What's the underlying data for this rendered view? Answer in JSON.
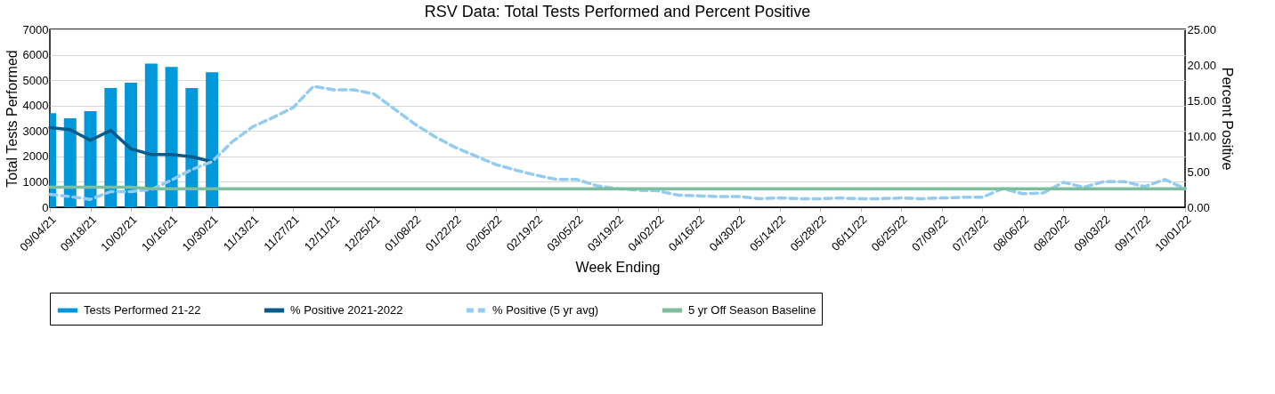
{
  "chart_data": {
    "type": "bar",
    "title": "RSV Data: Total Tests Performed and Percent Positive",
    "xlabel": "Week Ending",
    "ylabel": "Total Tests Performed",
    "y2label": "Percent Positive",
    "categories": [
      "09/04/21",
      null,
      "09/18/21",
      null,
      "10/02/21",
      null,
      "10/16/21",
      null,
      "10/30/21",
      null,
      "11/13/21",
      null,
      "11/27/21",
      null,
      "12/11/21",
      null,
      "12/25/21",
      null,
      "01/08/22",
      null,
      "01/22/22",
      null,
      "02/05/22",
      null,
      "02/19/22",
      null,
      "03/05/22",
      null,
      "03/19/22",
      null,
      "04/02/22",
      null,
      "04/16/22",
      null,
      "04/30/22",
      null,
      "05/14/22",
      null,
      "05/28/22",
      null,
      "06/11/22",
      null,
      "06/25/22",
      null,
      "07/09/22",
      null,
      "07/23/22",
      null,
      "08/06/22",
      null,
      "08/20/22",
      null,
      "09/03/22",
      null,
      "09/17/22",
      null,
      "10/01/22"
    ],
    "series": [
      {
        "name": "Tests Performed 21-22",
        "color": "#0098da",
        "values": [
          3700,
          3500,
          3780,
          4690,
          4900,
          5650,
          5520,
          4690,
          5310,
          null,
          null,
          null,
          null,
          null,
          null,
          null,
          null,
          null,
          null,
          null,
          null,
          null,
          null,
          null,
          null,
          null,
          null,
          null,
          null,
          null,
          null,
          null,
          null,
          null,
          null,
          null,
          null,
          null,
          null,
          null,
          null,
          null,
          null,
          null,
          null,
          null,
          null,
          null,
          null,
          null,
          null,
          null,
          null,
          null,
          null,
          null,
          null
        ]
      },
      {
        "name": "% Positive 2021-2022",
        "type": "line",
        "axis": "y2",
        "line_style": "solid",
        "color": "#0b5a8c",
        "values": [
          11.2,
          10.9,
          9.4,
          10.8,
          8.2,
          7.4,
          7.4,
          7.1,
          6.4,
          null,
          null,
          null,
          null,
          null,
          null,
          null,
          null,
          null,
          null,
          null,
          null,
          null,
          null,
          null,
          null,
          null,
          null,
          null,
          null,
          null,
          null,
          null,
          null,
          null,
          null,
          null,
          null,
          null,
          null,
          null,
          null,
          null,
          null,
          null,
          null,
          null,
          null,
          null,
          null,
          null,
          null,
          null,
          null,
          null,
          null,
          null,
          null
        ]
      },
      {
        "name": "% Positive (5 yr avg)",
        "type": "line",
        "axis": "y2",
        "line_style": "dashed",
        "color": "#93cbf1",
        "values": [
          1.8,
          1.5,
          1.1,
          2.2,
          2.2,
          2.5,
          3.8,
          5.3,
          6.4,
          9.2,
          11.3,
          12.6,
          14.0,
          17.0,
          16.5,
          16.5,
          15.9,
          13.8,
          11.7,
          9.9,
          8.4,
          7.2,
          6.0,
          5.2,
          4.5,
          3.9,
          3.9,
          3.0,
          2.6,
          2.4,
          2.3,
          1.7,
          1.6,
          1.5,
          1.5,
          1.2,
          1.3,
          1.2,
          1.2,
          1.3,
          1.2,
          1.2,
          1.3,
          1.2,
          1.3,
          1.4,
          1.4,
          2.6,
          1.9,
          2.0,
          3.5,
          2.8,
          3.6,
          3.6,
          2.9,
          3.9,
          2.6
        ]
      },
      {
        "name": "5 yr Off Season Baseline",
        "type": "line",
        "axis": "y2",
        "line_style": "solid",
        "color": "#7dbe9c",
        "values": [
          2.8,
          2.8,
          2.8,
          2.8,
          2.8,
          2.6,
          2.6,
          2.6,
          2.6,
          2.6,
          2.6,
          2.6,
          2.6,
          2.6,
          2.6,
          2.6,
          2.6,
          2.6,
          2.6,
          2.6,
          2.6,
          2.6,
          2.6,
          2.6,
          2.6,
          2.6,
          2.6,
          2.6,
          2.6,
          2.6,
          2.6,
          2.6,
          2.6,
          2.6,
          2.6,
          2.6,
          2.6,
          2.6,
          2.6,
          2.6,
          2.6,
          2.6,
          2.6,
          2.6,
          2.6,
          2.6,
          2.6,
          2.6,
          2.6,
          2.6,
          2.6,
          2.6,
          2.6,
          2.6,
          2.6,
          2.6,
          2.6
        ]
      }
    ],
    "ylim": [
      0,
      7000
    ],
    "yticks": [
      0,
      1000,
      2000,
      3000,
      4000,
      5000,
      6000,
      7000
    ],
    "y2lim": [
      0,
      25
    ],
    "y2ticks": [
      {
        "value": 0,
        "label": "0.00"
      },
      {
        "value": 5,
        "label": "5.00"
      },
      {
        "value": 10,
        "label": "10.00"
      },
      {
        "value": 15,
        "label": "15.00"
      },
      {
        "value": 20,
        "label": "20.00"
      },
      {
        "value": 25,
        "label": "25.00"
      }
    ],
    "grid": "y",
    "legend": "bottom"
  }
}
